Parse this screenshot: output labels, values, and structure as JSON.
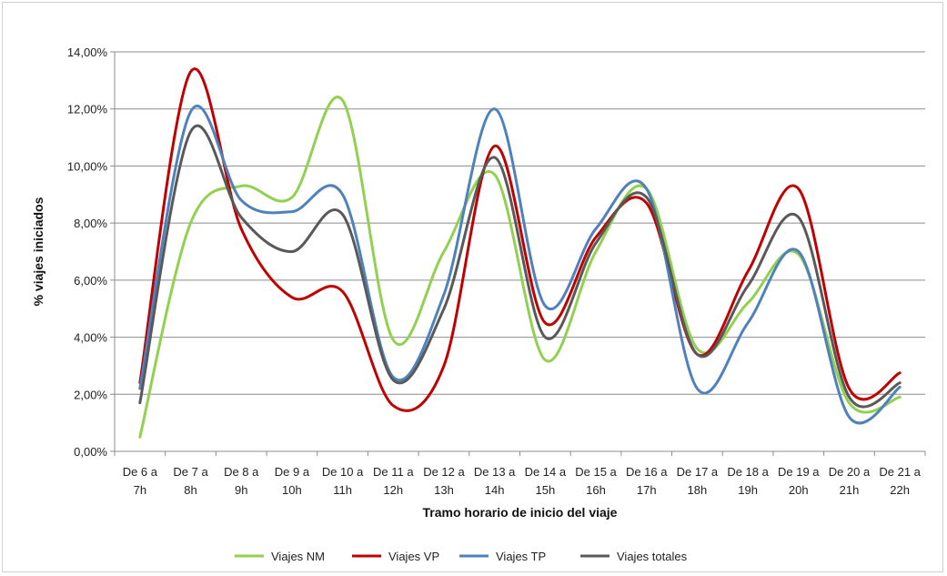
{
  "chart_data": {
    "type": "line",
    "xlabel": "Tramo horario de inicio del viaje",
    "ylabel": "% viajes iniciados",
    "ylim": [
      0,
      14
    ],
    "yticks": [
      "0,00%",
      "2,00%",
      "4,00%",
      "6,00%",
      "8,00%",
      "10,00%",
      "12,00%",
      "14,00%"
    ],
    "grid": true,
    "legend": "bottom",
    "categories": [
      [
        "De 6 a",
        "7h"
      ],
      [
        "De 7 a",
        "8h"
      ],
      [
        "De 8 a",
        "9h"
      ],
      [
        "De 9 a",
        "10h"
      ],
      [
        "De 10 a",
        "11h"
      ],
      [
        "De 11 a",
        "12h"
      ],
      [
        "De 12 a",
        "13h"
      ],
      [
        "De 13 a",
        "14h"
      ],
      [
        "De 14 a",
        "15h"
      ],
      [
        "De 15 a",
        "16h"
      ],
      [
        "De 16 a",
        "17h"
      ],
      [
        "De 17 a",
        "18h"
      ],
      [
        "De 18 a",
        "19h"
      ],
      [
        "De 19 a",
        "20h"
      ],
      [
        "De 20 a",
        "21h"
      ],
      [
        "De 21 a",
        "22h"
      ]
    ],
    "series": [
      {
        "name": "Viajes NM",
        "color": "#92d050",
        "values": [
          0.5,
          8.0,
          9.3,
          8.9,
          12.3,
          3.9,
          7.0,
          9.7,
          3.2,
          7.0,
          9.2,
          3.6,
          5.2,
          6.9,
          1.7,
          1.9
        ]
      },
      {
        "name": "Viajes VP",
        "color": "#c00000",
        "values": [
          2.4,
          13.3,
          7.8,
          5.4,
          5.6,
          1.6,
          3.0,
          10.7,
          4.5,
          7.5,
          8.7,
          3.4,
          6.3,
          9.2,
          2.2,
          2.75
        ]
      },
      {
        "name": "Viajes TP",
        "color": "#4f81bd",
        "values": [
          2.2,
          11.9,
          8.8,
          8.4,
          9.0,
          2.6,
          5.5,
          12.0,
          5.1,
          7.8,
          9.2,
          2.2,
          4.5,
          7.0,
          1.2,
          2.25
        ]
      },
      {
        "name": "Viajes totales",
        "color": "#595959",
        "values": [
          1.7,
          11.2,
          8.2,
          7.0,
          8.3,
          2.5,
          5.0,
          10.3,
          4.0,
          7.3,
          8.9,
          3.4,
          5.8,
          8.2,
          1.9,
          2.4
        ]
      }
    ]
  }
}
